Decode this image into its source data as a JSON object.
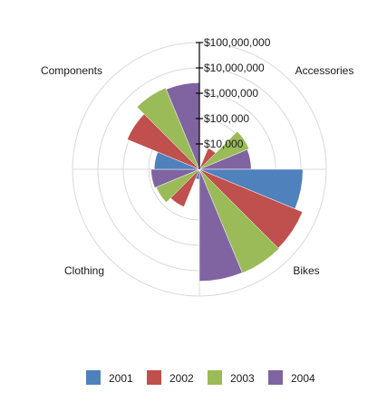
{
  "chart_data": {
    "type": "polar-bar",
    "scale": "log",
    "rlim": [
      1000,
      100000000
    ],
    "categories": [
      "Accessories",
      "Bikes",
      "Clothing",
      "Components"
    ],
    "series": [
      {
        "name": "2001",
        "color": "#4f81bd",
        "values": [
          0,
          12000000,
          2500,
          60000
        ]
      },
      {
        "name": "2002",
        "color": "#c0504d",
        "values": [
          8000,
          25000000,
          40000,
          1200000
        ]
      },
      {
        "name": "2003",
        "color": "#9bbb59",
        "values": [
          130000,
          27000000,
          70000,
          3000000
        ]
      },
      {
        "name": "2004",
        "color": "#8064a2",
        "values": [
          110000,
          26000000,
          80000,
          2600000
        ]
      }
    ],
    "ticks": [
      {
        "value": 10000,
        "label": "$10,000"
      },
      {
        "value": 100000,
        "label": "$100,000"
      },
      {
        "value": 1000000,
        "label": "$1,000,000"
      },
      {
        "value": 10000000,
        "label": "$10,000,000"
      },
      {
        "value": 100000000,
        "label": "$100,000,000"
      }
    ],
    "grid": true,
    "legend_position": "bottom"
  }
}
